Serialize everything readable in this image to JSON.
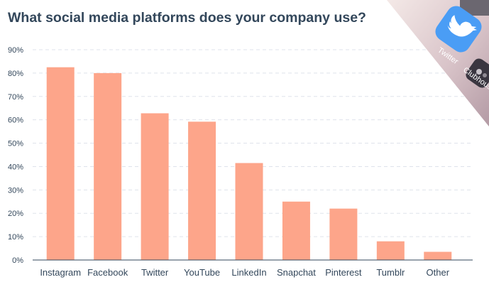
{
  "chart_data": {
    "type": "bar",
    "title": "What social media platforms does your company use?",
    "categories": [
      "Instagram",
      "Facebook",
      "Twitter",
      "YouTube",
      "LinkedIn",
      "Snapchat",
      "Pinterest",
      "Tumblr",
      "Other"
    ],
    "values": [
      82.5,
      80,
      62.8,
      59.2,
      41.5,
      25,
      22,
      8,
      3.5
    ],
    "y_ticks": [
      "0%",
      "10%",
      "20%",
      "30%",
      "40%",
      "50%",
      "60%",
      "70%",
      "80%",
      "90%"
    ],
    "ylim": [
      0,
      90
    ],
    "grid": true,
    "bar_color": "#fda58a"
  },
  "decoration": {
    "phone_labels": [
      "Twitter",
      "Clubhouse"
    ],
    "icons": [
      "twitter-bird-icon"
    ]
  },
  "colors": {
    "text": "#33475b",
    "grid": "#dfe3eb",
    "bar": "#fda58a",
    "twitter_blue": "#4a9df5"
  }
}
